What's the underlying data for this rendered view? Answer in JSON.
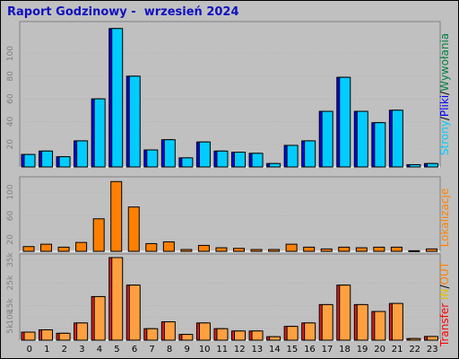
{
  "title": "Raport Godzinowy -  wrzesień 2024",
  "colors": {
    "background": "#c0c0c0",
    "pages": "#00ccff",
    "files": "#0000ff",
    "hits": "#008040",
    "visits": "#ff8000",
    "kbytes": "#ff0000"
  },
  "chart_data": [
    {
      "type": "bar",
      "panel": "requests",
      "ylabel_parts": [
        "Strony",
        "/",
        "Pliki",
        "/",
        "Wywołania"
      ],
      "ylim": [
        0,
        125
      ],
      "yticks": [
        20,
        40,
        60,
        80,
        100
      ],
      "categories": [
        "0",
        "1",
        "2",
        "3",
        "4",
        "5",
        "6",
        "7",
        "8",
        "9",
        "10",
        "11",
        "12",
        "13",
        "14",
        "15",
        "16",
        "17",
        "18",
        "19",
        "20",
        "21",
        "22",
        "23"
      ],
      "series": [
        {
          "values": [
            11,
            14,
            9,
            23,
            60,
            122,
            80,
            15,
            24,
            8,
            22,
            14,
            13,
            12,
            3,
            19,
            23,
            49,
            79,
            49,
            39,
            50,
            2,
            3
          ]
        },
        {
          "values": [
            11,
            14,
            9,
            23,
            60,
            122,
            80,
            15,
            24,
            8,
            22,
            14,
            13,
            12,
            3,
            19,
            23,
            49,
            79,
            49,
            39,
            50,
            2,
            3
          ]
        },
        {
          "values": [
            11,
            14,
            9,
            23,
            60,
            122,
            80,
            15,
            24,
            8,
            22,
            14,
            13,
            12,
            3,
            19,
            23,
            49,
            79,
            49,
            39,
            50,
            2,
            3
          ]
        }
      ]
    },
    {
      "type": "bar",
      "panel": "visits",
      "ylabel": "Lokalizacje",
      "ylim": [
        0,
        120
      ],
      "yticks": [
        20,
        60,
        100
      ],
      "categories": [
        "0",
        "1",
        "2",
        "3",
        "4",
        "5",
        "6",
        "7",
        "8",
        "9",
        "10",
        "11",
        "12",
        "13",
        "14",
        "15",
        "16",
        "17",
        "18",
        "19",
        "20",
        "21",
        "22",
        "23"
      ],
      "values": [
        8,
        12,
        7,
        15,
        55,
        118,
        75,
        13,
        16,
        3,
        10,
        6,
        5,
        3,
        3,
        12,
        7,
        4,
        7,
        6,
        7,
        7,
        1,
        4
      ]
    },
    {
      "type": "bar",
      "panel": "transfer",
      "ylabel_parts": [
        "Transfer",
        " ",
        "IN",
        "/",
        "OUT"
      ],
      "ylim": [
        0,
        36000
      ],
      "yticks": [
        "5k",
        "10k",
        "15k",
        "25k",
        "35k"
      ],
      "ytick_values": [
        5000,
        10000,
        15000,
        25000,
        35000
      ],
      "categories": [
        "0",
        "1",
        "2",
        "3",
        "4",
        "5",
        "6",
        "7",
        "8",
        "9",
        "10",
        "11",
        "12",
        "13",
        "14",
        "15",
        "16",
        "17",
        "18",
        "19",
        "20",
        "21",
        "22",
        "23"
      ],
      "series": [
        {
          "values": [
            3500,
            4500,
            3000,
            7500,
            19000,
            36000,
            24000,
            5000,
            8000,
            2500,
            7500,
            5000,
            4000,
            4000,
            1500,
            6000,
            7500,
            15500,
            24000,
            15500,
            12500,
            16000,
            700,
            1600
          ]
        },
        {
          "values": [
            3500,
            4500,
            3000,
            7500,
            19000,
            36000,
            24000,
            5000,
            8000,
            2500,
            7500,
            5000,
            4000,
            4000,
            1500,
            6000,
            7500,
            15500,
            24000,
            15500,
            12500,
            16000,
            700,
            1600
          ]
        }
      ]
    }
  ]
}
